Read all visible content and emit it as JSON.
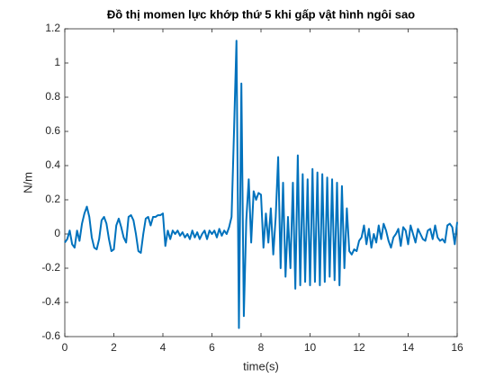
{
  "chart_data": {
    "type": "line",
    "title": "Đồ thị momen lực khớp thứ 5 khi gấp vật hình ngôi sao",
    "xlabel": "time(s)",
    "ylabel": "N/m",
    "color": "#0072bd",
    "grid": false,
    "xlim": [
      0,
      16
    ],
    "xticks": [
      0,
      2,
      4,
      6,
      8,
      10,
      12,
      14,
      16
    ],
    "ylim": [
      -0.6,
      1.2
    ],
    "yticks": [
      -0.6,
      -0.4,
      -0.2,
      0,
      0.2,
      0.4,
      0.6,
      0.8,
      1,
      1.2
    ],
    "x": [
      0,
      0.1,
      0.2,
      0.3,
      0.4,
      0.5,
      0.6,
      0.7,
      0.8,
      0.9,
      1,
      1.1,
      1.2,
      1.3,
      1.4,
      1.5,
      1.6,
      1.7,
      1.8,
      1.9,
      2,
      2.1,
      2.2,
      2.3,
      2.4,
      2.5,
      2.6,
      2.7,
      2.8,
      2.9,
      3,
      3.1,
      3.2,
      3.3,
      3.4,
      3.5,
      3.6,
      3.7,
      3.8,
      3.9,
      4,
      4.1,
      4.2,
      4.3,
      4.4,
      4.5,
      4.6,
      4.7,
      4.8,
      4.9,
      5,
      5.1,
      5.2,
      5.3,
      5.4,
      5.5,
      5.6,
      5.7,
      5.8,
      5.9,
      6,
      6.1,
      6.2,
      6.3,
      6.4,
      6.5,
      6.6,
      6.7,
      6.8,
      6.9,
      7,
      7.1,
      7.2,
      7.3,
      7.4,
      7.5,
      7.6,
      7.7,
      7.8,
      7.9,
      8,
      8.1,
      8.2,
      8.3,
      8.4,
      8.5,
      8.6,
      8.7,
      8.8,
      8.9,
      9,
      9.1,
      9.2,
      9.3,
      9.4,
      9.5,
      9.6,
      9.7,
      9.8,
      9.9,
      10,
      10.1,
      10.2,
      10.3,
      10.4,
      10.5,
      10.6,
      10.7,
      10.8,
      10.9,
      11,
      11.1,
      11.2,
      11.3,
      11.4,
      11.5,
      11.6,
      11.7,
      11.8,
      11.9,
      12,
      12.1,
      12.2,
      12.3,
      12.4,
      12.5,
      12.6,
      12.7,
      12.8,
      12.9,
      13,
      13.1,
      13.2,
      13.3,
      13.4,
      13.5,
      13.6,
      13.7,
      13.8,
      13.9,
      14,
      14.1,
      14.2,
      14.3,
      14.4,
      14.5,
      14.6,
      14.7,
      14.8,
      14.9,
      15,
      15.1,
      15.2,
      15.3,
      15.4,
      15.5,
      15.6,
      15.7,
      15.8,
      15.9,
      16
    ],
    "values": [
      -0.05,
      -0.03,
      0.02,
      -0.06,
      -0.08,
      0.02,
      -0.04,
      0.06,
      0.12,
      0.16,
      0.1,
      -0.02,
      -0.08,
      -0.09,
      -0.03,
      0.08,
      0.1,
      0.06,
      -0.03,
      -0.1,
      -0.09,
      0.05,
      0.09,
      0.04,
      -0.02,
      -0.05,
      0.1,
      0.11,
      0.08,
      0,
      -0.1,
      -0.11,
      0,
      0.09,
      0.1,
      0.05,
      0.1,
      0.1,
      0.11,
      0.11,
      0.12,
      -0.07,
      0.02,
      -0.03,
      0.02,
      0,
      0.02,
      -0.01,
      0.01,
      -0.02,
      0,
      -0.03,
      0.02,
      -0.02,
      0.01,
      -0.03,
      0,
      0.02,
      -0.03,
      0.02,
      0,
      0.02,
      -0.02,
      0.03,
      -0.01,
      0.02,
      0,
      0.04,
      0.1,
      0.6,
      1.13,
      -0.55,
      0.88,
      -0.48,
      0.08,
      0.32,
      -0.05,
      0.25,
      0.2,
      0.24,
      0.23,
      -0.08,
      0.12,
      -0.05,
      0.15,
      -0.12,
      0.1,
      0.45,
      -0.2,
      0.3,
      -0.25,
      0.1,
      -0.2,
      0.3,
      -0.32,
      0.46,
      -0.3,
      0.35,
      -0.28,
      0.32,
      -0.3,
      0.38,
      -0.28,
      0.36,
      -0.3,
      0.35,
      -0.28,
      0.33,
      -0.25,
      0.32,
      -0.27,
      0.3,
      -0.3,
      0.28,
      -0.2,
      0.15,
      -0.1,
      -0.12,
      -0.09,
      -0.1,
      -0.04,
      -0.02,
      0.05,
      -0.06,
      0.03,
      -0.08,
      0,
      -0.05,
      0.05,
      -0.03,
      0.06,
      0.02,
      -0.04,
      -0.08,
      -0.02,
      0,
      0.03,
      -0.07,
      0.04,
      0.02,
      -0.06,
      0.05,
      0,
      -0.05,
      0.03,
      0,
      -0.03,
      -0.04,
      0.02,
      0.03,
      -0.03,
      0.05,
      -0.02,
      -0.04,
      -0.03,
      -0.05,
      0.05,
      0.06,
      0.04,
      -0.06,
      0.07
    ]
  }
}
